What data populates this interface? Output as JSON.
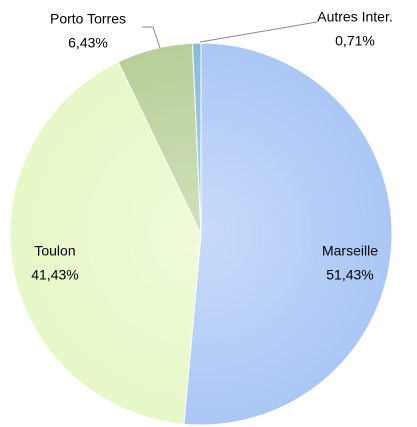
{
  "chart_data": {
    "type": "pie",
    "categories": [
      "Marseille",
      "Toulon",
      "Porto Torres",
      "Autres Inter."
    ],
    "values": [
      51.43,
      41.43,
      6.43,
      0.71
    ],
    "value_labels": [
      "51,43%",
      "41,43%",
      "6,43%",
      "0,71%"
    ],
    "colors": [
      "#abc7f6",
      "#e6f8c6",
      "#b8cf98",
      "#86bcd8"
    ]
  }
}
